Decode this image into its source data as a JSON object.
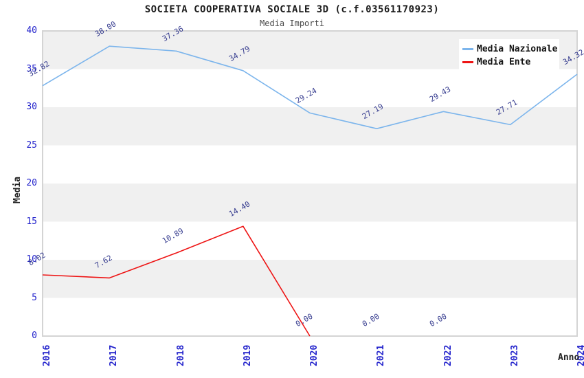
{
  "chart_data": {
    "type": "line",
    "title": "SOCIETA COOPERATIVA SOCIALE 3D (c.f.03561170923)",
    "subtitle": "Media Importi",
    "xlabel": "Anno",
    "ylabel": "Media",
    "x": [
      "2016",
      "2017",
      "2018",
      "2019",
      "2020",
      "2021",
      "2022",
      "2023",
      "2024"
    ],
    "series": [
      {
        "name": "Media Nazionale",
        "color": "#7cb5ec",
        "values": [
          32.82,
          38.0,
          37.36,
          34.79,
          29.24,
          27.19,
          29.43,
          27.71,
          34.32
        ],
        "line_end_index": 8
      },
      {
        "name": "Media Ente",
        "color": "#ee1414",
        "values": [
          8.02,
          7.62,
          10.89,
          14.4,
          0.0,
          0.0,
          0.0,
          null,
          null
        ],
        "line_end_index": 4
      }
    ],
    "ylim": [
      0,
      40
    ],
    "y_ticks": [
      0,
      5,
      10,
      15,
      20,
      25,
      30,
      35,
      40
    ],
    "grid": "alternating-horizontal-bands",
    "legend_position": "top-right"
  },
  "colors": {
    "band_dark": "#f0f0f0",
    "band_light": "#ffffff",
    "plot_border": "#d4d4d4",
    "tick_label": "#2424cc",
    "data_label": "#363c8f",
    "title_text": "#1c1c1c",
    "subtitle_text": "#4a4a4a"
  }
}
